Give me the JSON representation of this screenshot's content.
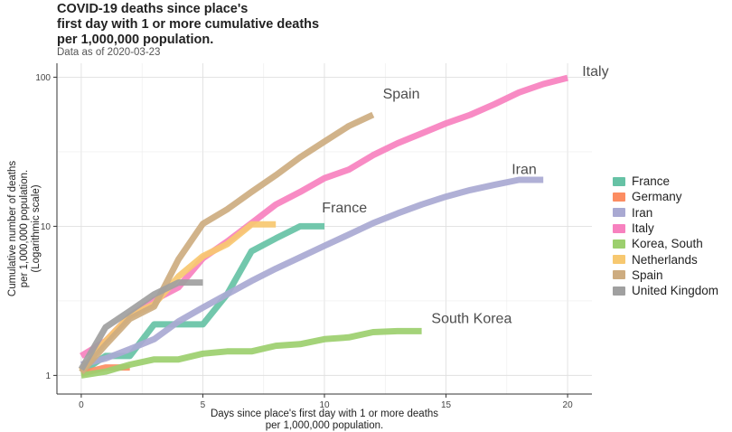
{
  "chart_data": {
    "type": "line",
    "title": "COVID-19 deaths since place's first day with 1 or more cumulative deaths per 1,000,000 population.",
    "title_lines": [
      "COVID-19 deaths since place's",
      "first day with 1 or more cumulative deaths",
      "per 1,000,000 population."
    ],
    "subtitle": "Data as of 2020-03-23",
    "xlabel_lines": [
      "Days since place's first day with 1 or more deaths",
      "per 1,000,000 population."
    ],
    "ylabel_lines": [
      "Cumulative number of deaths",
      "per 1,000,000 population.",
      "(Logarithmic scale)"
    ],
    "xlim": [
      -1,
      21
    ],
    "ylim": [
      0.75,
      124
    ],
    "yscale": "log",
    "x_ticks": [
      0,
      5,
      10,
      15,
      20
    ],
    "x_tick_labels": [
      "0",
      "5",
      "10",
      "15",
      "20"
    ],
    "y_ticks": [
      1,
      10,
      100
    ],
    "y_tick_labels": [
      "1",
      "10",
      "100"
    ],
    "legend_position": "right",
    "series": [
      {
        "name": "France",
        "color": "#66c2a5",
        "x": [
          0,
          1,
          2,
          3,
          4,
          5,
          6,
          7,
          8,
          9,
          10
        ],
        "y": [
          1.05,
          1.35,
          1.35,
          2.2,
          2.2,
          2.2,
          3.5,
          6.8,
          8.3,
          10,
          10
        ]
      },
      {
        "name": "Germany",
        "color": "#fc8d62",
        "x": [
          0,
          1,
          2
        ],
        "y": [
          1.03,
          1.13,
          1.13
        ]
      },
      {
        "name": "Iran",
        "color": "#a9a9d2",
        "x": [
          0,
          1,
          2,
          3,
          4,
          5,
          6,
          7,
          8,
          9,
          10,
          11,
          12,
          13,
          14,
          15,
          16,
          17,
          18,
          19
        ],
        "y": [
          1.18,
          1.3,
          1.5,
          1.75,
          2.3,
          2.85,
          3.5,
          4.3,
          5.2,
          6.2,
          7.4,
          8.8,
          10.5,
          12.2,
          14,
          15.8,
          17.5,
          19,
          20.5,
          20.5
        ]
      },
      {
        "name": "Italy",
        "color": "#f781bf",
        "x": [
          0,
          1,
          2,
          3,
          4,
          5,
          6,
          7,
          8,
          9,
          10,
          11,
          12,
          13,
          14,
          15,
          16,
          17,
          18,
          19,
          20
        ],
        "y": [
          1.35,
          1.7,
          2.5,
          3.2,
          3.9,
          6.1,
          7.9,
          10.5,
          14,
          17,
          21,
          24,
          30,
          36,
          42,
          49,
          56,
          66,
          79,
          90,
          99
        ]
      },
      {
        "name": "Korea, South",
        "color": "#9ccf6e",
        "x": [
          0,
          1,
          2,
          3,
          4,
          5,
          6,
          7,
          8,
          9,
          10,
          11,
          12,
          13,
          14
        ],
        "y": [
          1.0,
          1.06,
          1.18,
          1.28,
          1.28,
          1.4,
          1.45,
          1.45,
          1.58,
          1.62,
          1.75,
          1.8,
          1.95,
          1.98,
          1.98
        ]
      },
      {
        "name": "Netherlands",
        "color": "#f7c870",
        "x": [
          0,
          1,
          2,
          3,
          4,
          5,
          6,
          7,
          8
        ],
        "y": [
          1.08,
          1.7,
          2.5,
          3.0,
          4.6,
          6.3,
          7.6,
          10.3,
          10.3
        ]
      },
      {
        "name": "Spain",
        "color": "#cdac80",
        "x": [
          0,
          1,
          2,
          3,
          4,
          5,
          6,
          7,
          8,
          9,
          10,
          11,
          12
        ],
        "y": [
          1.05,
          1.6,
          2.4,
          2.9,
          6.0,
          10.4,
          13,
          17,
          22,
          29,
          37,
          47,
          56
        ]
      },
      {
        "name": "United Kingdom",
        "color": "#a0a0a0",
        "x": [
          0,
          1,
          2,
          3,
          4,
          5
        ],
        "y": [
          1.1,
          2.1,
          2.7,
          3.5,
          4.2,
          4.2
        ]
      }
    ],
    "annotations": [
      {
        "text": "Italy",
        "x": 20.6,
        "y": 102
      },
      {
        "text": "Spain",
        "x": 12.4,
        "y": 72
      },
      {
        "text": "Iran",
        "x": 17.7,
        "y": 22.5
      },
      {
        "text": "France",
        "x": 9.9,
        "y": 12.4
      },
      {
        "text": "South Korea",
        "x": 14.4,
        "y": 2.25
      }
    ]
  }
}
